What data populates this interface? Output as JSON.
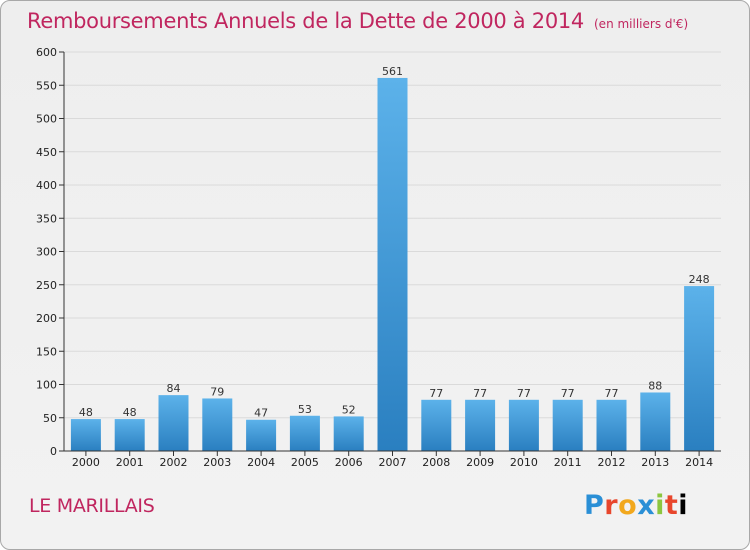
{
  "title": "Remboursements Annuels de la Dette de 2000 à 2014",
  "unit": "(en milliers d'€)",
  "city": "LE MARILLAIS",
  "brand": "Proxiti",
  "colors": {
    "title": "#c0265f",
    "bar_top": "#5cb2ea",
    "bar_bottom": "#2a7fc0",
    "axis": "#333333",
    "grid": "#dadada"
  },
  "chart_data": {
    "type": "bar",
    "categories": [
      "2000",
      "2001",
      "2002",
      "2003",
      "2004",
      "2005",
      "2006",
      "2007",
      "2008",
      "2009",
      "2010",
      "2011",
      "2012",
      "2013",
      "2014"
    ],
    "values": [
      48,
      48,
      84,
      79,
      47,
      53,
      52,
      561,
      77,
      77,
      77,
      77,
      77,
      88,
      248
    ],
    "ylim": [
      0,
      600
    ],
    "yticks": [
      0,
      50,
      100,
      150,
      200,
      250,
      300,
      350,
      400,
      450,
      500,
      550,
      600
    ],
    "grid": true,
    "data_labels": true
  }
}
